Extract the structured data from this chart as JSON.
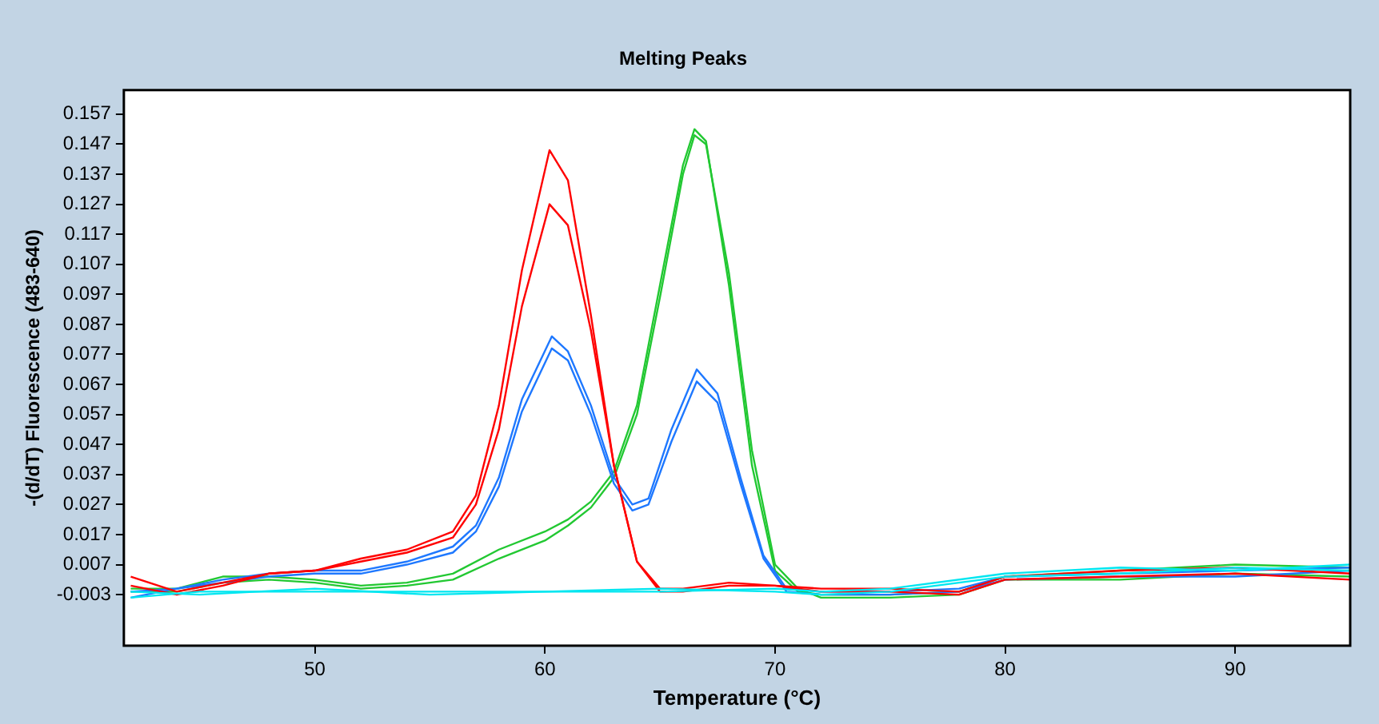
{
  "chart_data": {
    "type": "line",
    "title": "Melting Peaks",
    "xlabel": "Temperature (°C)",
    "ylabel": "-(d/dT) Fluorescence (483-640)",
    "xlim": [
      41.7,
      95
    ],
    "xticks": [
      50,
      60,
      70,
      80,
      90
    ],
    "ylim": [
      -0.02,
      0.165
    ],
    "yticks": [
      -0.003,
      0.007,
      0.017,
      0.027,
      0.037,
      0.047,
      0.057,
      0.067,
      0.077,
      0.087,
      0.097,
      0.107,
      0.117,
      0.127,
      0.137,
      0.147,
      0.157
    ],
    "grid": false,
    "legend": false,
    "marker": "none",
    "line_style": "solid",
    "series": [
      {
        "color": "#00e6f0",
        "x": [
          42,
          45,
          50,
          55,
          60,
          65,
          70,
          72,
          75,
          80,
          85,
          90,
          95
        ],
        "values": [
          -0.004,
          -0.002,
          -0.002,
          -0.002,
          -0.002,
          -0.002,
          -0.001,
          -0.002,
          -0.001,
          0.004,
          0.006,
          0.005,
          0.007
        ]
      },
      {
        "color": "#00e6f0",
        "x": [
          42,
          45,
          50,
          55,
          60,
          65,
          70,
          72,
          75,
          80,
          85,
          90,
          95
        ],
        "values": [
          -0.002,
          -0.003,
          -0.001,
          -0.003,
          -0.002,
          -0.001,
          -0.002,
          -0.003,
          -0.002,
          0.003,
          0.004,
          0.006,
          0.005
        ]
      },
      {
        "color": "#ff0000",
        "x": [
          42,
          44,
          46,
          48,
          50,
          52,
          54,
          56,
          57,
          58,
          59,
          60.2,
          61,
          62,
          63,
          64,
          65,
          66,
          68,
          70,
          72,
          75,
          78,
          80,
          85,
          90,
          95
        ],
        "values": [
          0.003,
          -0.002,
          0.001,
          0.004,
          0.005,
          0.009,
          0.012,
          0.018,
          0.03,
          0.06,
          0.105,
          0.145,
          0.135,
          0.09,
          0.04,
          0.008,
          -0.001,
          -0.001,
          0.001,
          0,
          -0.001,
          -0.001,
          -0.002,
          0.003,
          0.005,
          0.006,
          0.004
        ]
      },
      {
        "color": "#ff0000",
        "x": [
          42,
          44,
          46,
          48,
          50,
          52,
          54,
          56,
          57,
          58,
          59,
          60.2,
          61,
          62,
          63,
          64,
          65,
          66,
          68,
          70,
          72,
          75,
          78,
          80,
          85,
          90,
          95
        ],
        "values": [
          0,
          -0.003,
          0,
          0.004,
          0.005,
          0.008,
          0.011,
          0.016,
          0.027,
          0.052,
          0.093,
          0.127,
          0.12,
          0.085,
          0.04,
          0.008,
          -0.002,
          -0.002,
          0,
          0,
          -0.002,
          -0.002,
          -0.003,
          0.002,
          0.003,
          0.004,
          0.002
        ]
      },
      {
        "color": "#1e78ff",
        "x": [
          42,
          44,
          46,
          48,
          50,
          52,
          54,
          56,
          57,
          58,
          59,
          60.3,
          61,
          62,
          63,
          63.8,
          64.5,
          65.5,
          66.6,
          67.5,
          68.5,
          69.5,
          70.5,
          72,
          75,
          78,
          80,
          85,
          90,
          95
        ],
        "values": [
          -0.004,
          -0.001,
          0.002,
          0.004,
          0.005,
          0.005,
          0.008,
          0.013,
          0.02,
          0.036,
          0.062,
          0.083,
          0.078,
          0.06,
          0.036,
          0.027,
          0.029,
          0.052,
          0.072,
          0.064,
          0.036,
          0.01,
          -0.001,
          -0.002,
          -0.002,
          -0.001,
          0.003,
          0.004,
          0.005,
          0.006
        ]
      },
      {
        "color": "#1e78ff",
        "x": [
          42,
          44,
          46,
          48,
          50,
          52,
          54,
          56,
          57,
          58,
          59,
          60.3,
          61,
          62,
          63,
          63.8,
          64.5,
          65.5,
          66.6,
          67.5,
          68.5,
          69.5,
          70.5,
          72,
          75,
          78,
          80,
          85,
          90,
          95
        ],
        "values": [
          -0.002,
          -0.001,
          0.001,
          0.003,
          0.004,
          0.004,
          0.007,
          0.011,
          0.018,
          0.033,
          0.058,
          0.079,
          0.075,
          0.057,
          0.034,
          0.025,
          0.027,
          0.048,
          0.068,
          0.061,
          0.034,
          0.009,
          -0.002,
          -0.003,
          -0.003,
          -0.002,
          0.002,
          0.003,
          0.003,
          0.005
        ]
      },
      {
        "color": "#22c832",
        "x": [
          42,
          44,
          46,
          48,
          50,
          52,
          54,
          56,
          58,
          60,
          61,
          62,
          63,
          64,
          65,
          66,
          66.5,
          67,
          68,
          69,
          70,
          71,
          72,
          75,
          78,
          80,
          85,
          90,
          95
        ],
        "values": [
          -0.001,
          -0.001,
          0.003,
          0.003,
          0.002,
          0,
          0.001,
          0.004,
          0.012,
          0.018,
          0.022,
          0.028,
          0.038,
          0.06,
          0.1,
          0.14,
          0.152,
          0.148,
          0.1,
          0.04,
          0.005,
          -0.002,
          -0.003,
          -0.003,
          -0.002,
          0.003,
          0.005,
          0.007,
          0.006
        ]
      },
      {
        "color": "#22c832",
        "x": [
          42,
          44,
          46,
          48,
          50,
          52,
          54,
          56,
          58,
          60,
          61,
          62,
          63,
          64,
          65,
          66,
          66.5,
          67,
          68,
          69,
          70,
          71,
          72,
          75,
          78,
          80,
          85,
          90,
          95
        ],
        "values": [
          -0.002,
          -0.002,
          0.001,
          0.002,
          0.001,
          -0.001,
          0,
          0.002,
          0.009,
          0.015,
          0.02,
          0.026,
          0.036,
          0.057,
          0.096,
          0.137,
          0.15,
          0.147,
          0.104,
          0.045,
          0.007,
          -0.001,
          -0.004,
          -0.004,
          -0.003,
          0.002,
          0.002,
          0.004,
          0.003
        ]
      }
    ]
  }
}
